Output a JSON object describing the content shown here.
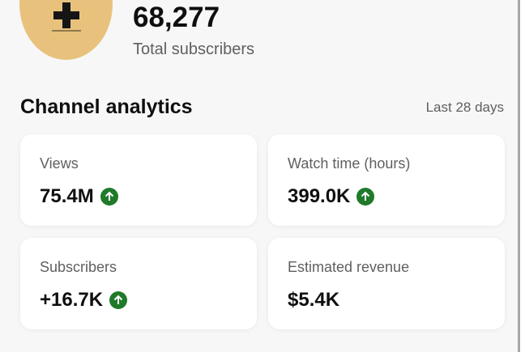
{
  "header": {
    "subscriber_count": "68,277",
    "subscriber_label": "Total subscribers"
  },
  "analytics": {
    "title": "Channel analytics",
    "range": "Last 28 days",
    "cards": [
      {
        "label": "Views",
        "value": "75.4M",
        "trend": "up"
      },
      {
        "label": "Watch time (hours)",
        "value": "399.0K",
        "trend": "up"
      },
      {
        "label": "Subscribers",
        "value": "+16.7K",
        "trend": "up"
      },
      {
        "label": "Estimated revenue",
        "value": "$5.4K",
        "trend": null
      }
    ]
  },
  "colors": {
    "avatar": "#e8c27d",
    "trend_up": "#1f7a2a"
  }
}
